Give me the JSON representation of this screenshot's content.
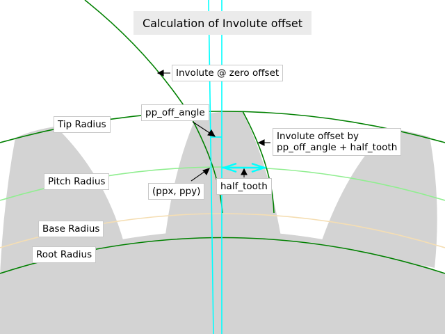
{
  "title": "Calculation of Involute offset",
  "labels": {
    "involute_zero": "Involute @ zero offset",
    "pp_off_angle": "pp_off_angle",
    "involute_offset_line1": "Involute offset by",
    "involute_offset_line2": "pp_off_angle + half_tooth",
    "ppx_ppy": "(ppx, ppy)",
    "half_tooth": "half_tooth",
    "tip_radius": "Tip Radius",
    "pitch_radius": "Pitch Radius",
    "base_radius": "Base Radius",
    "root_radius": "Root Radius"
  },
  "colors": {
    "tooth_fill": "#d3d3d3",
    "tip_circle": "#008000",
    "root_circle": "#008000",
    "pitch_circle": "#90ee90",
    "base_circle": "#f5deb3",
    "involute": "#008000",
    "radial_lines": "#00ffff",
    "half_tooth_arrow": "#00ffff"
  }
}
